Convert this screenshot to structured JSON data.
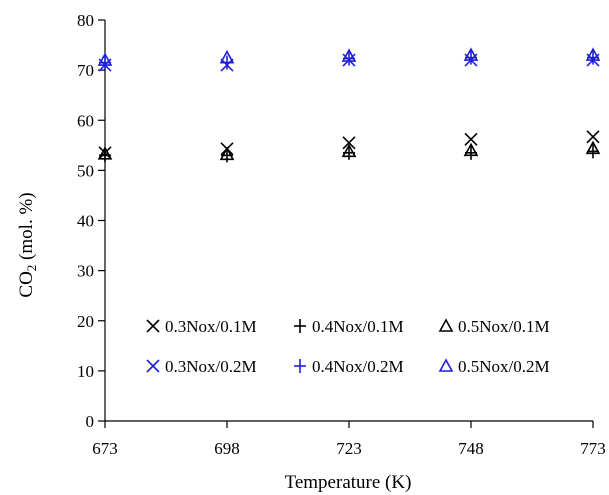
{
  "chart_data": {
    "type": "scatter",
    "xlabel": "Temperature (K)",
    "ylabel": "CO2 (mol. %)",
    "ylabel_parts": {
      "main": "CO",
      "sub": "2",
      "rest": " (mol. %)"
    },
    "x": [
      673,
      698,
      723,
      748,
      773
    ],
    "x_tick_labels": [
      "673",
      "698",
      "723",
      "748",
      "773"
    ],
    "xlim": [
      673,
      773
    ],
    "ylim": [
      0,
      80
    ],
    "y_ticks": [
      0,
      10,
      20,
      30,
      40,
      50,
      60,
      70,
      80
    ],
    "y_tick_labels": [
      "0",
      "10",
      "20",
      "30",
      "40",
      "50",
      "60",
      "70",
      "80"
    ],
    "grid": false,
    "legend_position": "lower-right",
    "series": [
      {
        "name": "0.3Nox/0.1M",
        "marker": "x",
        "color": "#000000",
        "values": [
          53.5,
          54.3,
          55.5,
          56.2,
          56.7
        ]
      },
      {
        "name": "0.4Nox/0.1M",
        "marker": "plus",
        "color": "#000000",
        "values": [
          53.0,
          53.0,
          53.5,
          53.5,
          53.8
        ]
      },
      {
        "name": "0.5Nox/0.1M",
        "marker": "triangle",
        "color": "#000000",
        "values": [
          53.3,
          53.2,
          53.8,
          54.0,
          54.4
        ]
      },
      {
        "name": "0.3Nox/0.2M",
        "marker": "x",
        "color": "#1f1fd6",
        "values": [
          71.0,
          71.0,
          72.0,
          72.0,
          72.0
        ]
      },
      {
        "name": "0.4Nox/0.2M",
        "marker": "plus",
        "color": "#1f1fd6",
        "values": [
          71.5,
          71.5,
          72.3,
          72.5,
          72.5
        ]
      },
      {
        "name": "0.5Nox/0.2M",
        "marker": "triangle",
        "color": "#1f1fd6",
        "values": [
          72.0,
          72.5,
          72.8,
          73.0,
          73.0
        ]
      }
    ]
  }
}
